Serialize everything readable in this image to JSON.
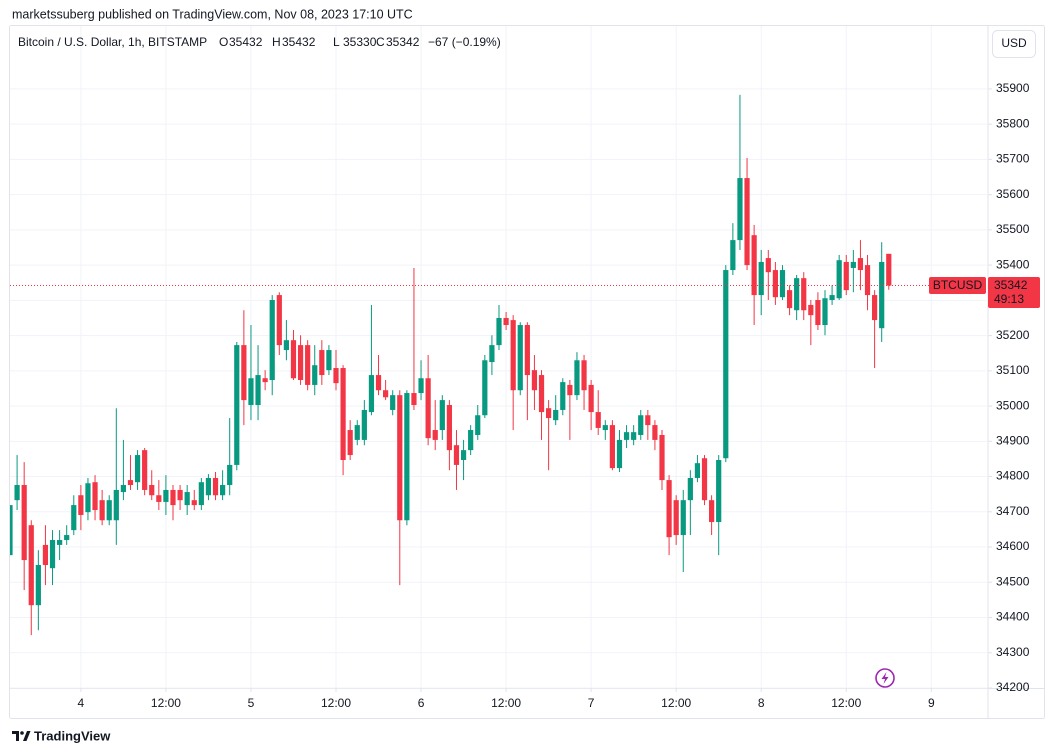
{
  "published": "marketssuberg published on TradingView.com, Nov 08, 2023 17:10 UTC",
  "currency_button": "USD",
  "footer_brand": "TradingView",
  "chart_data": {
    "type": "candlestick",
    "title": "Bitcoin / U.S. Dollar, 1h, BITSTAMP",
    "ohlc_legend": [
      {
        "label": "O",
        "value": 35432
      },
      {
        "label": "H",
        "value": 35432
      },
      {
        "label": "L",
        "value": 35330
      },
      {
        "label": "C",
        "value": 35342
      }
    ],
    "change": "−67 (−0.19%)",
    "up_color": "#089981",
    "down_color": "#f23645",
    "grid": true,
    "open": [
      34577,
      34733,
      34776,
      34662,
      34435,
      34606,
      34540,
      34606,
      34620,
      34648,
      34747,
      34699,
      34784,
      34733,
      34676,
      34676,
      34756,
      34790,
      34784,
      34875,
      34776,
      34747,
      34728,
      34762,
      34762,
      34719,
      34733,
      34719,
      34747,
      34796,
      34747,
      34776,
      34833,
      35173,
      35003,
      35003,
      35079,
      35074,
      35315,
      35159,
      35187,
      35173,
      35173,
      35060,
      35159,
      35102,
      35108,
      35108,
      34932,
      34904,
      34904,
      34983,
      35088,
      35045,
      34989,
      35031,
      34676,
      35037,
      35037,
      35079,
      34932,
      34932,
      35003,
      34889,
      34847,
      34875,
      34918,
      34974,
      35125,
      35173,
      35250,
      35244,
      35045,
      35230,
      35102,
      35088,
      34994,
      34960,
      34989,
      35060,
      35031,
      35130,
      35060,
      34983,
      34932,
      34946,
      34824,
      34904,
      34904,
      34918,
      34974,
      34946,
      34918,
      34790,
      34733,
      34634,
      34733,
      34796,
      34852,
      34733,
      34671,
      34852,
      35386,
      35471,
      35647,
      35485,
      35315,
      35420,
      35386,
      35309,
      35329,
      35272,
      35363,
      35287,
      35301,
      35230,
      35301,
      35306,
      35409,
      35392,
      35420,
      35400,
      35315,
      35221,
      35432
    ],
    "high": [
      34719,
      34861,
      34841,
      34676,
      34591,
      34662,
      34648,
      34648,
      34662,
      34747,
      34776,
      34796,
      34804,
      34762,
      34747,
      34994,
      34904,
      34861,
      34875,
      34881,
      34818,
      34790,
      34804,
      34776,
      34776,
      34776,
      34762,
      34796,
      34807,
      34813,
      34818,
      34966,
      35182,
      35272,
      35230,
      35173,
      35102,
      35315,
      35323,
      35244,
      35216,
      35201,
      35187,
      35173,
      35187,
      35173,
      35159,
      35116,
      34960,
      34960,
      35017,
      35287,
      35145,
      35074,
      35045,
      35045,
      35045,
      35392,
      35130,
      35145,
      35017,
      35031,
      35017,
      34932,
      34904,
      34946,
      35003,
      35145,
      35201,
      35287,
      35267,
      35258,
      35238,
      35238,
      35145,
      35102,
      35017,
      35031,
      35079,
      35074,
      35153,
      35145,
      35074,
      35045,
      34960,
      34960,
      34932,
      34946,
      34946,
      34989,
      34989,
      34960,
      34932,
      34804,
      34747,
      34762,
      34818,
      34861,
      34861,
      34747,
      34861,
      35400,
      35519,
      35883,
      35704,
      35514,
      35443,
      35443,
      35409,
      35400,
      35343,
      35372,
      35380,
      35301,
      35323,
      35329,
      35343,
      35429,
      35429,
      35443,
      35471,
      35429,
      35329,
      35465,
      35432
    ],
    "low": [
      34577,
      34705,
      34478,
      34350,
      34364,
      34492,
      34492,
      34563,
      34606,
      34634,
      34648,
      34676,
      34676,
      34662,
      34662,
      34606,
      34733,
      34762,
      34762,
      34747,
      34733,
      34705,
      34691,
      34676,
      34705,
      34691,
      34705,
      34705,
      34733,
      34733,
      34733,
      34747,
      34818,
      34946,
      34960,
      34960,
      35045,
      35031,
      35145,
      35130,
      35074,
      35060,
      35045,
      35031,
      35060,
      35088,
      35045,
      34804,
      34847,
      34889,
      34889,
      34974,
      35031,
      35017,
      34974,
      34492,
      34662,
      34989,
      35017,
      34889,
      34875,
      34904,
      34818,
      34762,
      34790,
      34861,
      34904,
      34966,
      35088,
      35159,
      35216,
      34932,
      35031,
      34960,
      34989,
      34904,
      34818,
      34946,
      34974,
      34904,
      35017,
      34989,
      34932,
      34918,
      34904,
      34818,
      34813,
      34881,
      34889,
      34904,
      34904,
      34875,
      34762,
      34577,
      34606,
      34529,
      34634,
      34784,
      34719,
      34634,
      34577,
      34841,
      35372,
      35443,
      35386,
      35230,
      35258,
      35301,
      35287,
      35301,
      35258,
      35244,
      35244,
      35173,
      35216,
      35201,
      35287,
      35301,
      35315,
      35323,
      35329,
      35272,
      35108,
      35182,
      35330
    ],
    "close": [
      34719,
      34776,
      34563,
      34435,
      34549,
      34549,
      34620,
      34620,
      34634,
      34719,
      34691,
      34781,
      34705,
      34676,
      34733,
      34762,
      34776,
      34776,
      34861,
      34762,
      34747,
      34728,
      34762,
      34719,
      34733,
      34756,
      34719,
      34784,
      34796,
      34747,
      34776,
      34833,
      35173,
      35017,
      35079,
      35088,
      35068,
      35301,
      35173,
      35187,
      35079,
      35074,
      35060,
      35116,
      35088,
      35159,
      35065,
      34847,
      34861,
      34946,
      34989,
      35088,
      35045,
      35025,
      35031,
      34676,
      35037,
      35003,
      35079,
      34909,
      34904,
      35017,
      34875,
      34833,
      34875,
      34932,
      34974,
      35130,
      35173,
      35250,
      35230,
      35045,
      35230,
      35088,
      35045,
      34983,
      34966,
      34989,
      35068,
      35031,
      35130,
      35045,
      34983,
      34938,
      34946,
      34824,
      34904,
      34926,
      34926,
      34974,
      34946,
      34904,
      34790,
      34628,
      34634,
      34733,
      34796,
      34838,
      34733,
      34671,
      34847,
      35386,
      35471,
      35647,
      35400,
      35315,
      35409,
      35380,
      35309,
      35386,
      35278,
      35363,
      35272,
      35258,
      35230,
      35306,
      35315,
      35414,
      35329,
      35409,
      35386,
      35315,
      35244,
      35409,
      35342
    ],
    "xlim": [
      0,
      138
    ],
    "xticks": [
      {
        "value": 10,
        "label": "4"
      },
      {
        "value": 22,
        "label": "12:00"
      },
      {
        "value": 34,
        "label": "5"
      },
      {
        "value": 46,
        "label": "12:00"
      },
      {
        "value": 58,
        "label": "6"
      },
      {
        "value": 70,
        "label": "12:00"
      },
      {
        "value": 82,
        "label": "7"
      },
      {
        "value": 94,
        "label": "12:00"
      },
      {
        "value": 106,
        "label": "8"
      },
      {
        "value": 118,
        "label": "12:00"
      },
      {
        "value": 130,
        "label": "9"
      }
    ],
    "ylim": [
      34200,
      35950
    ],
    "yticks": [
      34200,
      34300,
      34400,
      34500,
      34600,
      34700,
      34800,
      34900,
      35000,
      35100,
      35200,
      35300,
      35400,
      35500,
      35600,
      35700,
      35800,
      35900
    ],
    "price_tag": {
      "symbol": "BTCUSD",
      "value": 35342,
      "countdown": "49:13"
    }
  }
}
